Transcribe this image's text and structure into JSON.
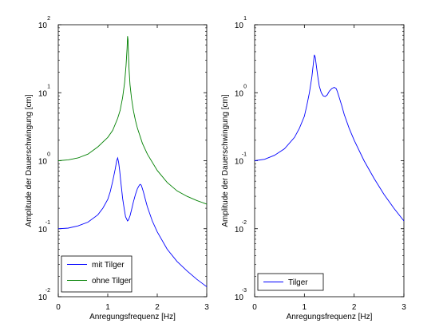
{
  "chart_data": [
    {
      "type": "line",
      "xlabel": "Anregungsfrequenz [Hz]",
      "ylabel": "Amplitude der Dauerschwingung [cm]",
      "xlim": [
        0,
        3
      ],
      "ylim": [
        0.01,
        100
      ],
      "yscale": "log",
      "xticks": [
        "0",
        "1",
        "2",
        "3"
      ],
      "yticks": [
        {
          "base": "10",
          "exp": "-2"
        },
        {
          "base": "10",
          "exp": "-1"
        },
        {
          "base": "10",
          "exp": "0"
        },
        {
          "base": "10",
          "exp": "1"
        },
        {
          "base": "10",
          "exp": "2"
        }
      ],
      "legend_position": "bottom-left",
      "series": [
        {
          "name": "mit Tilger",
          "color": "#0000ff",
          "x": [
            0,
            0.2,
            0.4,
            0.6,
            0.8,
            0.9,
            1.0,
            1.05,
            1.1,
            1.15,
            1.18,
            1.2,
            1.22,
            1.24,
            1.26,
            1.28,
            1.3,
            1.33,
            1.36,
            1.4,
            1.42,
            1.45,
            1.48,
            1.52,
            1.56,
            1.6,
            1.64,
            1.66,
            1.68,
            1.72,
            1.76,
            1.8,
            1.9,
            2.0,
            2.2,
            2.4,
            2.6,
            2.8,
            3.0
          ],
          "y": [
            0.1,
            0.102,
            0.11,
            0.125,
            0.16,
            0.2,
            0.27,
            0.35,
            0.5,
            0.75,
            1.0,
            1.1,
            0.95,
            0.72,
            0.52,
            0.38,
            0.28,
            0.2,
            0.15,
            0.13,
            0.135,
            0.155,
            0.19,
            0.25,
            0.32,
            0.39,
            0.44,
            0.45,
            0.43,
            0.35,
            0.27,
            0.21,
            0.13,
            0.09,
            0.05,
            0.033,
            0.024,
            0.018,
            0.014
          ]
        },
        {
          "name": "ohne Tilger",
          "color": "#008000",
          "x": [
            0,
            0.2,
            0.4,
            0.6,
            0.8,
            1.0,
            1.1,
            1.2,
            1.25,
            1.3,
            1.34,
            1.37,
            1.39,
            1.4,
            1.41,
            1.42,
            1.43,
            1.45,
            1.48,
            1.52,
            1.56,
            1.6,
            1.7,
            1.8,
            2.0,
            2.2,
            2.4,
            2.6,
            2.8,
            3.0
          ],
          "y": [
            1.0,
            1.03,
            1.1,
            1.25,
            1.6,
            2.2,
            2.8,
            4.2,
            5.5,
            8.5,
            14,
            25,
            45,
            68,
            60,
            35,
            22,
            13,
            8.2,
            5.4,
            3.9,
            3.0,
            1.8,
            1.25,
            0.72,
            0.48,
            0.36,
            0.3,
            0.26,
            0.23
          ]
        }
      ]
    },
    {
      "type": "line",
      "xlabel": "Anregungsfrequenz [Hz]",
      "ylabel": "Amplitude der Dauerschwingung [cm]",
      "xlim": [
        0,
        3
      ],
      "ylim": [
        0.001,
        10
      ],
      "yscale": "log",
      "xticks": [
        "0",
        "1",
        "2",
        "3"
      ],
      "yticks": [
        {
          "base": "10",
          "exp": "-3"
        },
        {
          "base": "10",
          "exp": "-2"
        },
        {
          "base": "10",
          "exp": "-1"
        },
        {
          "base": "10",
          "exp": "0"
        },
        {
          "base": "10",
          "exp": "1"
        }
      ],
      "legend_position": "bottom-left",
      "series": [
        {
          "name": "Tilger",
          "color": "#0000ff",
          "x": [
            0,
            0.2,
            0.4,
            0.6,
            0.8,
            0.9,
            1.0,
            1.05,
            1.1,
            1.15,
            1.18,
            1.2,
            1.22,
            1.24,
            1.27,
            1.3,
            1.34,
            1.38,
            1.42,
            1.46,
            1.5,
            1.55,
            1.6,
            1.64,
            1.66,
            1.7,
            1.75,
            1.8,
            1.9,
            2.0,
            2.2,
            2.4,
            2.6,
            2.8,
            3.0
          ],
          "y": [
            0.1,
            0.105,
            0.12,
            0.15,
            0.22,
            0.3,
            0.45,
            0.65,
            1.0,
            1.7,
            2.7,
            3.6,
            3.3,
            2.5,
            1.7,
            1.25,
            1.0,
            0.9,
            0.88,
            0.93,
            1.05,
            1.15,
            1.2,
            1.15,
            1.05,
            0.85,
            0.65,
            0.48,
            0.3,
            0.2,
            0.1,
            0.055,
            0.032,
            0.02,
            0.013
          ]
        }
      ]
    }
  ]
}
